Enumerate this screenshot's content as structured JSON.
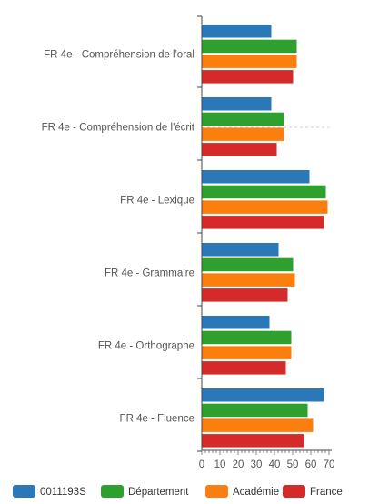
{
  "chart_data": {
    "type": "bar",
    "orientation": "horizontal",
    "categories": [
      "FR 4e - Compréhension de l'oral",
      "FR 4e - Compréhension de l'écrit",
      "FR 4e - Lexique",
      "FR 4e - Grammaire",
      "FR 4e - Orthographe",
      "FR 4e - Fluence"
    ],
    "series": [
      {
        "name": "0011193S",
        "color": "#2a78b8",
        "values": [
          38,
          38,
          59,
          42,
          37,
          67
        ]
      },
      {
        "name": "Département",
        "color": "#2ea02e",
        "values": [
          52,
          45,
          68,
          50,
          49,
          58
        ]
      },
      {
        "name": "Académie",
        "color": "#fb7f0f",
        "values": [
          52,
          45,
          69,
          51,
          49,
          61
        ]
      },
      {
        "name": "France",
        "color": "#d42a2a",
        "values": [
          50,
          41,
          67,
          47,
          46,
          56
        ]
      }
    ],
    "xlim": [
      0,
      70
    ],
    "xticks": [
      0,
      10,
      20,
      30,
      40,
      50,
      60,
      70
    ],
    "title": "",
    "xlabel": "",
    "ylabel": "",
    "grid": false,
    "legend_position": "bottom"
  }
}
